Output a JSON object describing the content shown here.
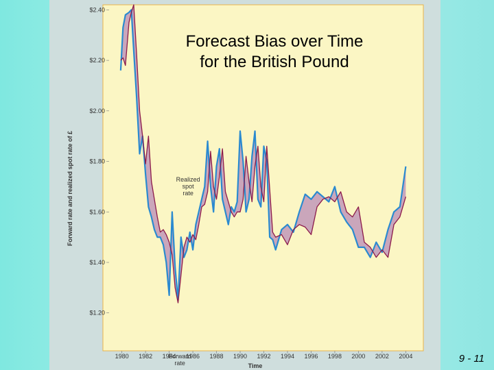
{
  "slide": {
    "title_line1": "Forecast Bias over Time",
    "title_line2": "for the British Pound",
    "slide_number": "9 - 11"
  },
  "colors": {
    "background": "#8fe6e2",
    "plot_background": "#fbf6c4",
    "forward_line": "#8b1a4a",
    "spot_line": "#2a8ad0",
    "shade": "#b98bb8"
  },
  "chart_data": {
    "type": "line",
    "title": "",
    "xlabel": "Time",
    "ylabel": "Forward rate and realized spot rate of £",
    "x_ticks": [
      "1980",
      "1982",
      "1984",
      "1986",
      "1988",
      "1990",
      "1992",
      "1994",
      "1996",
      "1998",
      "2000",
      "2002",
      "2004"
    ],
    "y_ticks": [
      "$1.20",
      "$1.40",
      "$1.60",
      "$1.80",
      "$2.00",
      "$2.20",
      "$2.40"
    ],
    "xlim": [
      1979.5,
      2004.5
    ],
    "ylim": [
      1.05,
      2.42
    ],
    "annotations": [
      {
        "text_lines": [
          "Realized",
          "spot",
          "rate"
        ],
        "x": 1985.6,
        "y": 1.72
      },
      {
        "text_lines": [
          "Forward",
          "rate"
        ],
        "x": 1984.9,
        "y": 1.02
      }
    ],
    "series": [
      {
        "name": "Forward rate",
        "x": [
          1979.9,
          1980.1,
          1980.3,
          1980.6,
          1980.8,
          1981.0,
          1981.25,
          1981.5,
          1981.75,
          1982.0,
          1982.25,
          1982.5,
          1982.75,
          1983.0,
          1983.25,
          1983.5,
          1983.75,
          1984.0,
          1984.25,
          1984.5,
          1984.75,
          1985.0,
          1985.25,
          1985.5,
          1985.75,
          1986.0,
          1986.25,
          1986.5,
          1986.75,
          1987.0,
          1987.25,
          1987.5,
          1987.75,
          1988.0,
          1988.25,
          1988.5,
          1988.75,
          1989.0,
          1989.25,
          1989.5,
          1989.75,
          1990.0,
          1990.25,
          1990.5,
          1990.75,
          1991.0,
          1991.25,
          1991.5,
          1991.75,
          1992.0,
          1992.25,
          1992.5,
          1992.75,
          1993.0,
          1993.5,
          1994.0,
          1994.5,
          1995.0,
          1995.5,
          1996.0,
          1996.5,
          1997.0,
          1997.5,
          1998.0,
          1998.5,
          1999.0,
          1999.5,
          2000.0,
          2000.5,
          2001.0,
          2001.5,
          2002.0,
          2002.5,
          2003.0,
          2003.5,
          2004.0
        ],
        "values": [
          2.2,
          2.21,
          2.18,
          2.35,
          2.39,
          2.42,
          2.22,
          2.0,
          1.9,
          1.79,
          1.9,
          1.72,
          1.65,
          1.58,
          1.52,
          1.53,
          1.51,
          1.48,
          1.43,
          1.3,
          1.24,
          1.35,
          1.46,
          1.5,
          1.48,
          1.51,
          1.49,
          1.55,
          1.62,
          1.63,
          1.68,
          1.84,
          1.7,
          1.65,
          1.74,
          1.85,
          1.68,
          1.64,
          1.6,
          1.58,
          1.6,
          1.6,
          1.65,
          1.82,
          1.72,
          1.64,
          1.78,
          1.86,
          1.7,
          1.64,
          1.86,
          1.69,
          1.52,
          1.5,
          1.51,
          1.47,
          1.53,
          1.55,
          1.54,
          1.51,
          1.62,
          1.65,
          1.66,
          1.64,
          1.68,
          1.6,
          1.58,
          1.62,
          1.48,
          1.46,
          1.42,
          1.45,
          1.42,
          1.55,
          1.58,
          1.66
        ]
      },
      {
        "name": "Realized spot rate",
        "x": [
          1979.9,
          1980.1,
          1980.3,
          1980.6,
          1980.8,
          1981.0,
          1981.25,
          1981.5,
          1981.75,
          1982.0,
          1982.25,
          1982.5,
          1982.75,
          1983.0,
          1983.25,
          1983.5,
          1983.75,
          1984.0,
          1984.25,
          1984.5,
          1984.75,
          1985.0,
          1985.25,
          1985.5,
          1985.75,
          1986.0,
          1986.25,
          1986.5,
          1986.75,
          1987.0,
          1987.25,
          1987.5,
          1987.75,
          1988.0,
          1988.25,
          1988.5,
          1988.75,
          1989.0,
          1989.25,
          1989.5,
          1989.75,
          1990.0,
          1990.25,
          1990.5,
          1990.75,
          1991.0,
          1991.25,
          1991.5,
          1991.75,
          1992.0,
          1992.25,
          1992.5,
          1992.75,
          1993.0,
          1993.5,
          1994.0,
          1994.5,
          1995.0,
          1995.5,
          1996.0,
          1996.5,
          1997.0,
          1997.5,
          1998.0,
          1998.5,
          1999.0,
          1999.5,
          2000.0,
          2000.5,
          2001.0,
          2001.5,
          2002.0,
          2002.5,
          2003.0,
          2003.5,
          2004.0
        ],
        "values": [
          2.16,
          2.33,
          2.38,
          2.39,
          2.4,
          2.24,
          2.05,
          1.83,
          1.9,
          1.75,
          1.62,
          1.58,
          1.53,
          1.5,
          1.5,
          1.47,
          1.4,
          1.27,
          1.6,
          1.38,
          1.25,
          1.5,
          1.42,
          1.45,
          1.52,
          1.45,
          1.55,
          1.6,
          1.65,
          1.7,
          1.88,
          1.7,
          1.6,
          1.78,
          1.85,
          1.65,
          1.6,
          1.55,
          1.62,
          1.6,
          1.64,
          1.92,
          1.8,
          1.6,
          1.65,
          1.82,
          1.92,
          1.65,
          1.62,
          1.86,
          1.8,
          1.5,
          1.49,
          1.45,
          1.53,
          1.55,
          1.52,
          1.6,
          1.67,
          1.65,
          1.68,
          1.66,
          1.64,
          1.7,
          1.6,
          1.56,
          1.53,
          1.46,
          1.46,
          1.42,
          1.48,
          1.44,
          1.53,
          1.6,
          1.62,
          1.78
        ]
      }
    ]
  }
}
